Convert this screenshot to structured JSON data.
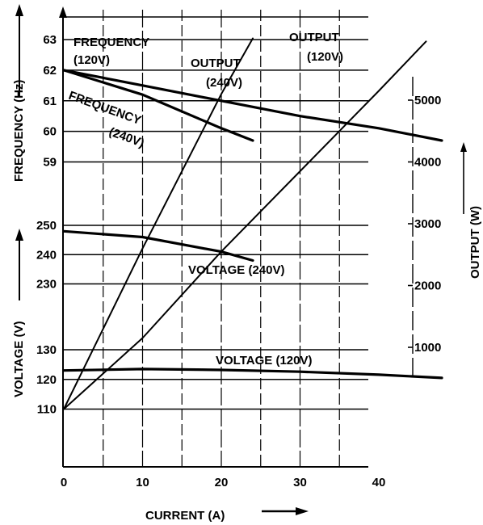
{
  "chart_data": {
    "type": "line",
    "xlabel": "CURRENT (A)",
    "x_ticks": [
      0,
      10,
      20,
      30,
      40
    ],
    "x_range": [
      0,
      48
    ],
    "axes": {
      "frequency": {
        "label": "FREQUENCY (Hz)",
        "ticks": [
          63,
          62,
          61,
          60,
          59
        ],
        "range": [
          59,
          63
        ]
      },
      "voltage_upper": {
        "label": "VOLTAGE (V)",
        "ticks": [
          250,
          240,
          230
        ],
        "range": [
          230,
          250
        ]
      },
      "voltage_lower": {
        "ticks": [
          130,
          120,
          110
        ],
        "range": [
          110,
          130
        ]
      },
      "output": {
        "label": "OUTPUT (W)",
        "ticks": [
          5000,
          4000,
          3000,
          2000,
          1000
        ],
        "range": [
          0,
          5000
        ]
      }
    },
    "series": [
      {
        "name": "FREQUENCY (120V)",
        "label_lines": [
          "FREQUENCY",
          "(120V)"
        ],
        "axis": "frequency",
        "x": [
          0,
          10,
          20,
          30,
          40,
          48
        ],
        "y": [
          62.0,
          61.5,
          61.0,
          60.5,
          60.1,
          59.7
        ]
      },
      {
        "name": "FREQUENCY (240V)",
        "label_lines": [
          "FREQUENCY",
          "(240V)"
        ],
        "axis": "frequency",
        "x": [
          0,
          10,
          20,
          24
        ],
        "y": [
          62.0,
          61.2,
          60.1,
          59.7
        ]
      },
      {
        "name": "OUTPUT (240V)",
        "label_lines": [
          "OUTPUT",
          "(240V)"
        ],
        "axis": "output",
        "x": [
          0,
          10,
          20,
          24
        ],
        "y": [
          0,
          2600,
          5100,
          6000
        ]
      },
      {
        "name": "OUTPUT (120V)",
        "label_lines": [
          "OUTPUT",
          "(120V)"
        ],
        "axis": "output",
        "x": [
          0,
          10,
          20,
          30,
          40,
          46
        ],
        "y": [
          0,
          1150,
          2550,
          3850,
          5150,
          5950
        ]
      },
      {
        "name": "VOLTAGE (240V)",
        "label_lines": [
          "VOLTAGE (240V)"
        ],
        "axis": "voltage_upper",
        "x": [
          0,
          10,
          20,
          24
        ],
        "y": [
          248,
          246,
          241,
          238
        ]
      },
      {
        "name": "VOLTAGE (120V)",
        "label_lines": [
          "VOLTAGE (120V)"
        ],
        "axis": "voltage_lower",
        "x": [
          0,
          10,
          20,
          30,
          40,
          48
        ],
        "y": [
          123,
          123.5,
          123.2,
          122.6,
          121.6,
          120.5
        ]
      }
    ],
    "grid": true
  }
}
